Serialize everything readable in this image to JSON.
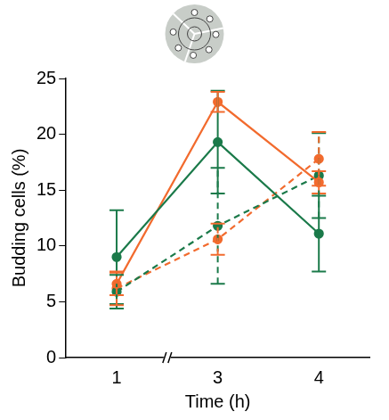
{
  "chart_data": {
    "type": "line",
    "x_label": "Time (h)",
    "y_label": "Budding cells (%)",
    "categories": [
      "1",
      "3",
      "4"
    ],
    "series": [
      {
        "color": "#1b7a4a",
        "line_style": "solid",
        "marker": "circle",
        "values": [
          9.0,
          19.3,
          11.1
        ],
        "errors": [
          4.2,
          4.6,
          3.4
        ]
      },
      {
        "color": "#f26b2e",
        "line_style": "solid",
        "marker": "circle",
        "values": [
          6.6,
          22.9,
          15.7
        ],
        "errors": [
          1.0,
          0.9,
          1.0
        ]
      },
      {
        "color": "#1b7a4a",
        "line_style": "dashed",
        "marker": "circle",
        "values": [
          5.9,
          11.8,
          16.3
        ],
        "errors": [
          1.5,
          5.2,
          3.8
        ]
      },
      {
        "color": "#f26b2e",
        "line_style": "dashed",
        "marker": "circle",
        "values": [
          6.2,
          10.6,
          17.8
        ],
        "errors": [
          1.5,
          1.4,
          2.4
        ]
      }
    ],
    "ylim": [
      0,
      25
    ],
    "yticks": [
      0,
      5,
      10,
      15,
      20,
      25
    ],
    "grid": false
  }
}
